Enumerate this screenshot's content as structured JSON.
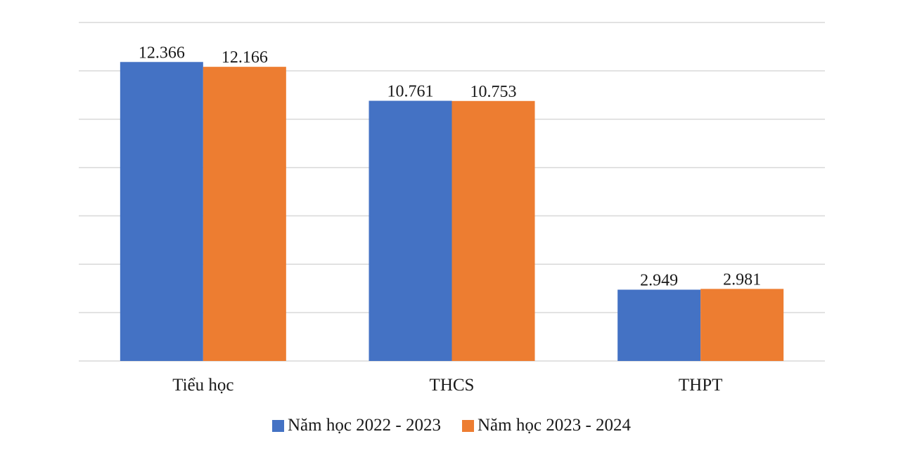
{
  "chart_data": {
    "type": "bar",
    "categories": [
      "Tiểu học",
      "THCS",
      "THPT"
    ],
    "series": [
      {
        "name": "Năm học 2022 - 2023",
        "values": [
          12.366,
          10.761,
          2.949
        ],
        "labels": [
          "12.366",
          "10.761",
          "2.949"
        ],
        "color": "#4472C4"
      },
      {
        "name": "Năm học 2023 - 2024",
        "values": [
          12.166,
          10.753,
          2.981
        ],
        "labels": [
          "12.166",
          "10.753",
          "2.981"
        ],
        "color": "#ED7D31"
      }
    ],
    "ylim": [
      0,
      14
    ],
    "grid": true,
    "legend_position": "bottom"
  }
}
